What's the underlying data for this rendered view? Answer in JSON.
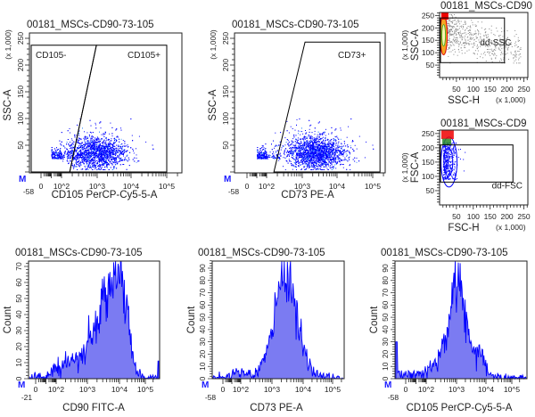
{
  "colors": {
    "events": "#0000ff",
    "events_light": "#3a8cff",
    "hist_fill": "#7b7bf2",
    "hist_line": "#0000ff",
    "gate": "#000000",
    "background_events": "#8c8c8c"
  },
  "chart_data": [
    {
      "type": "scatter",
      "id": "p1",
      "title": "00181_MSCs-CD90-73-105",
      "xlabel": "CD105 PerCP-Cy5-5-A",
      "ylabel": "SSC-A",
      "yunit": "(x 1,000)",
      "x_scale": "biexponential",
      "xlim": [
        -58,
        262144
      ],
      "ylim": [
        0,
        250
      ],
      "x_ticks": [
        "-58",
        "0",
        "10^2",
        "10^3",
        "10^4",
        "10^5"
      ],
      "y_ticks": [
        "50",
        "100",
        "150",
        "200",
        "250"
      ],
      "marker_label": "M",
      "population": {
        "center_x": 1000,
        "center_y": 35,
        "main_color": "blue"
      },
      "gates": [
        {
          "label": "CD105-",
          "vertices": [
            [
              -58,
              0
            ],
            [
              170,
              0
            ],
            [
              950,
              237
            ],
            [
              -58,
              237
            ]
          ]
        },
        {
          "label": "CD105+",
          "vertices": [
            [
              170,
              0
            ],
            [
              100000,
              0
            ],
            [
              100000,
              237
            ],
            [
              950,
              237
            ]
          ]
        }
      ]
    },
    {
      "type": "scatter",
      "id": "p2",
      "title": "00181_MSCs-CD90-73-105",
      "xlabel": "CD73 PE-A",
      "ylabel": "SSC-A",
      "yunit": "(x 1,000)",
      "x_scale": "biexponential",
      "xlim": [
        -58,
        262144
      ],
      "ylim": [
        0,
        250
      ],
      "x_ticks": [
        "-58",
        "0",
        "10^2",
        "10^3",
        "10^4",
        "10^5"
      ],
      "y_ticks": [
        "50",
        "100",
        "150",
        "200",
        "250"
      ],
      "marker_label": "M",
      "population": {
        "center_x": 2500,
        "center_y": 35,
        "main_color": "blue"
      },
      "gates": [
        {
          "label": "CD73+",
          "vertices": [
            [
              160,
              0
            ],
            [
              160000,
              0
            ],
            [
              160000,
              243
            ],
            [
              1200,
              243
            ]
          ]
        }
      ]
    },
    {
      "type": "scatter",
      "id": "p3",
      "title": "00181_MSCs-CD90",
      "xlabel": "SSC-H",
      "xunit": "(x 1,000)",
      "ylabel": "SSC-A",
      "yunit": "(x 1,000)",
      "xlim": [
        0,
        262
      ],
      "ylim": [
        0,
        262
      ],
      "x_ticks": [
        "50",
        "100",
        "150",
        "200",
        "250"
      ],
      "y_ticks": [
        "50",
        "100",
        "150",
        "200",
        "250"
      ],
      "gates": [
        {
          "label": "dd-SSC",
          "vertices": [
            [
              0,
              60
            ],
            [
              190,
              60
            ],
            [
              190,
              240
            ],
            [
              0,
              240
            ]
          ]
        }
      ]
    },
    {
      "type": "scatter",
      "id": "p4",
      "title": "00181_MSCs-CD9",
      "xlabel": "FSC-H",
      "xunit": "(x 1,000)",
      "ylabel": "FSC-A",
      "yunit": "(x 1,000)",
      "xlim": [
        0,
        262
      ],
      "ylim": [
        0,
        262
      ],
      "x_ticks": [
        "50",
        "100",
        "150",
        "200",
        "250"
      ],
      "y_ticks": [
        "50",
        "100",
        "150",
        "200",
        "250"
      ],
      "gates": [
        {
          "label": "dd-FSC",
          "vertices": [
            [
              0,
              80
            ],
            [
              215,
              80
            ],
            [
              215,
              210
            ],
            [
              0,
              210
            ]
          ]
        }
      ]
    },
    {
      "type": "area",
      "id": "h1",
      "title": "00181_MSCs-CD90-73-105",
      "xlabel": "CD90 FITC-A",
      "ylabel": "Count",
      "x_scale": "biexponential",
      "xlim": [
        -21,
        262144
      ],
      "ylim": [
        0,
        73
      ],
      "x_ticks": [
        "-21",
        "0",
        "10^2",
        "10^3",
        "10^4",
        "10^5"
      ],
      "y_ticks": [
        "0",
        "10",
        "20",
        "30",
        "40",
        "50",
        "60",
        "70"
      ],
      "marker_label": "M",
      "profile_log10x_count": [
        [
          0.2,
          1
        ],
        [
          1,
          2
        ],
        [
          1.5,
          4
        ],
        [
          2,
          7
        ],
        [
          2.5,
          10
        ],
        [
          2.8,
          15
        ],
        [
          3,
          22
        ],
        [
          3.3,
          35
        ],
        [
          3.6,
          55
        ],
        [
          3.8,
          64
        ],
        [
          3.95,
          70
        ],
        [
          4.1,
          62
        ],
        [
          4.3,
          40
        ],
        [
          4.5,
          14
        ],
        [
          4.7,
          3
        ],
        [
          5,
          1
        ],
        [
          5.3,
          1
        ]
      ]
    },
    {
      "type": "area",
      "id": "h2",
      "title": "00181_MSCs-CD90-73-105",
      "xlabel": "CD73 PE-A",
      "ylabel": "Count",
      "x_scale": "biexponential",
      "xlim": [
        -58,
        262144
      ],
      "ylim": [
        0,
        96
      ],
      "x_ticks": [
        "-58",
        "0",
        "10^2",
        "10^3",
        "10^4",
        "10^5"
      ],
      "y_ticks": [
        "0",
        "10",
        "20",
        "30",
        "40",
        "50",
        "60",
        "70",
        "80",
        "90"
      ],
      "marker_label": "M",
      "profile_log10x_count": [
        [
          0.2,
          1
        ],
        [
          1,
          3
        ],
        [
          1.5,
          5
        ],
        [
          2,
          5
        ],
        [
          2.4,
          3
        ],
        [
          2.6,
          8
        ],
        [
          2.9,
          25
        ],
        [
          3.1,
          55
        ],
        [
          3.3,
          80
        ],
        [
          3.45,
          88
        ],
        [
          3.6,
          80
        ],
        [
          3.8,
          50
        ],
        [
          4,
          25
        ],
        [
          4.2,
          10
        ],
        [
          4.5,
          3
        ],
        [
          5,
          1
        ],
        [
          5.3,
          0
        ]
      ]
    },
    {
      "type": "area",
      "id": "h3",
      "title": "00181_MSCs-CD90-73-105",
      "xlabel": "CD105 PerCP-Cy5-5-A",
      "ylabel": "Count",
      "x_scale": "biexponential",
      "xlim": [
        -58,
        262144
      ],
      "ylim": [
        0,
        96
      ],
      "x_ticks": [
        "-58",
        "0",
        "10^2",
        "10^3",
        "10^4",
        "10^5"
      ],
      "y_ticks": [
        "0",
        "10",
        "20",
        "30",
        "40",
        "50",
        "60",
        "70",
        "80",
        "90"
      ],
      "marker_label": "M",
      "profile_log10x_count": [
        [
          0,
          3
        ],
        [
          1,
          3
        ],
        [
          2,
          6
        ],
        [
          2.4,
          15
        ],
        [
          2.7,
          40
        ],
        [
          2.9,
          70
        ],
        [
          3.0,
          85
        ],
        [
          3.1,
          80
        ],
        [
          3.3,
          50
        ],
        [
          3.5,
          25
        ],
        [
          3.8,
          20
        ],
        [
          4,
          10
        ],
        [
          4.2,
          2
        ],
        [
          5,
          1
        ],
        [
          5.3,
          1
        ]
      ]
    }
  ]
}
